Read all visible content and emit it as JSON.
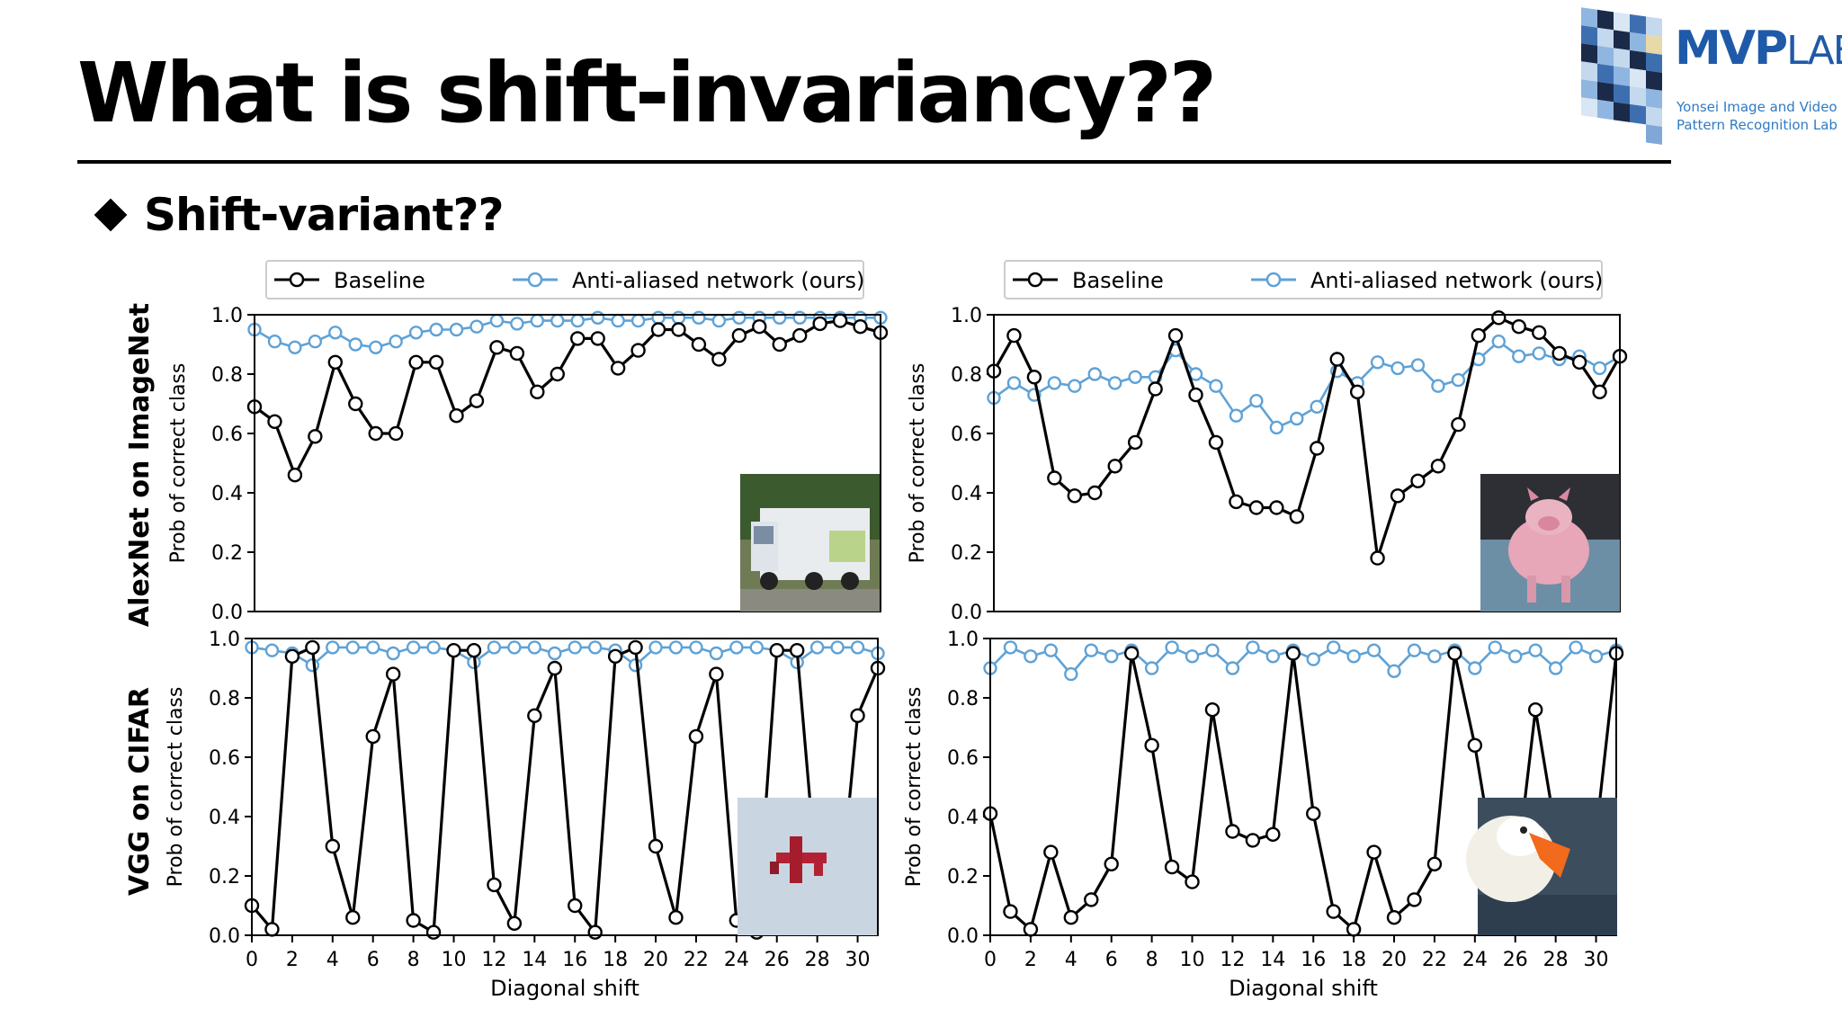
{
  "slide": {
    "title": "What is shift-invariancy??",
    "bullet": "Shift-variant??"
  },
  "logo": {
    "name_main": "MVP",
    "name_lab": "LAB",
    "subtitle_line1": "Yonsei Image and Video",
    "subtitle_line2": "Pattern Recognition Lab"
  },
  "colors": {
    "baseline": "#000000",
    "antialiased": "#5fa2d6"
  },
  "row_labels": [
    "AlexNet on ImageNet",
    "VGG on CIFAR"
  ],
  "chart_data": [
    {
      "type": "line",
      "xlim": [
        0,
        31
      ],
      "ylim": [
        0,
        1
      ],
      "yticks": [
        "0.0",
        "0.2",
        "0.4",
        "0.6",
        "0.8",
        "1.0"
      ],
      "xticks": [],
      "ylabel": "Prob of correct class",
      "xlabel": "",
      "legend": "top-center",
      "inset_image": "garbage-truck-photo",
      "series": [
        {
          "name": "Baseline",
          "x": [
            0,
            1,
            2,
            3,
            4,
            5,
            6,
            7,
            8,
            9,
            10,
            11,
            12,
            13,
            14,
            15,
            16,
            17,
            18,
            19,
            20,
            21,
            22,
            23,
            24,
            25,
            26,
            27,
            28,
            29,
            30,
            31
          ],
          "values": [
            0.69,
            0.64,
            0.46,
            0.59,
            0.84,
            0.7,
            0.6,
            0.6,
            0.84,
            0.84,
            0.66,
            0.71,
            0.89,
            0.87,
            0.74,
            0.8,
            0.92,
            0.92,
            0.82,
            0.88,
            0.95,
            0.95,
            0.9,
            0.85,
            0.93,
            0.96,
            0.9,
            0.93,
            0.97,
            0.98,
            0.96,
            0.94
          ]
        },
        {
          "name": "Anti-aliased network (ours)",
          "x": [
            0,
            1,
            2,
            3,
            4,
            5,
            6,
            7,
            8,
            9,
            10,
            11,
            12,
            13,
            14,
            15,
            16,
            17,
            18,
            19,
            20,
            21,
            22,
            23,
            24,
            25,
            26,
            27,
            28,
            29,
            30,
            31
          ],
          "values": [
            0.95,
            0.91,
            0.89,
            0.91,
            0.94,
            0.9,
            0.89,
            0.91,
            0.94,
            0.95,
            0.95,
            0.96,
            0.98,
            0.97,
            0.98,
            0.98,
            0.98,
            0.99,
            0.98,
            0.98,
            0.99,
            0.99,
            0.99,
            0.98,
            0.99,
            0.99,
            0.99,
            0.99,
            0.99,
            0.99,
            0.99,
            0.99
          ]
        }
      ]
    },
    {
      "type": "line",
      "xlim": [
        0,
        31
      ],
      "ylim": [
        0,
        1
      ],
      "yticks": [
        "0.0",
        "0.2",
        "0.4",
        "0.6",
        "0.8",
        "1.0"
      ],
      "xticks": [],
      "ylabel": "Prob of correct class",
      "xlabel": "",
      "legend": "top-center",
      "inset_image": "pig-toy-photo",
      "series": [
        {
          "name": "Baseline",
          "x": [
            0,
            1,
            2,
            3,
            4,
            5,
            6,
            7,
            8,
            9,
            10,
            11,
            12,
            13,
            14,
            15,
            16,
            17,
            18,
            19,
            20,
            21,
            22,
            23,
            24,
            25,
            26,
            27,
            28,
            29,
            30,
            31
          ],
          "values": [
            0.81,
            0.93,
            0.79,
            0.45,
            0.39,
            0.4,
            0.49,
            0.57,
            0.75,
            0.93,
            0.73,
            0.57,
            0.37,
            0.35,
            0.35,
            0.32,
            0.55,
            0.85,
            0.74,
            0.18,
            0.39,
            0.44,
            0.49,
            0.63,
            0.93,
            0.99,
            0.96,
            0.94,
            0.87,
            0.84,
            0.74,
            0.86
          ]
        },
        {
          "name": "Anti-aliased network (ours)",
          "x": [
            0,
            1,
            2,
            3,
            4,
            5,
            6,
            7,
            8,
            9,
            10,
            11,
            12,
            13,
            14,
            15,
            16,
            17,
            18,
            19,
            20,
            21,
            22,
            23,
            24,
            25,
            26,
            27,
            28,
            29,
            30,
            31
          ],
          "values": [
            0.72,
            0.77,
            0.73,
            0.77,
            0.76,
            0.8,
            0.77,
            0.79,
            0.79,
            0.88,
            0.8,
            0.76,
            0.66,
            0.71,
            0.62,
            0.65,
            0.69,
            0.81,
            0.77,
            0.84,
            0.82,
            0.83,
            0.76,
            0.78,
            0.85,
            0.91,
            0.86,
            0.87,
            0.85,
            0.86,
            0.82,
            0.86
          ]
        }
      ]
    },
    {
      "type": "line",
      "xlim": [
        0,
        31
      ],
      "ylim": [
        0,
        1
      ],
      "yticks": [
        "0.0",
        "0.2",
        "0.4",
        "0.6",
        "0.8",
        "1.0"
      ],
      "xticks": [
        "0",
        "2",
        "4",
        "6",
        "8",
        "10",
        "12",
        "14",
        "16",
        "18",
        "20",
        "22",
        "24",
        "26",
        "28",
        "30"
      ],
      "ylabel": "Prob of correct class",
      "xlabel": "Diagonal shift",
      "inset_image": "red-airplane-photo",
      "series": [
        {
          "name": "Baseline",
          "x": [
            0,
            1,
            2,
            3,
            4,
            5,
            6,
            7,
            8,
            9,
            10,
            11,
            12,
            13,
            14,
            15,
            16,
            17,
            18,
            19,
            20,
            21,
            22,
            23,
            24,
            25,
            26,
            27,
            28,
            29,
            30,
            31
          ],
          "values": [
            0.1,
            0.02,
            0.94,
            0.97,
            0.3,
            0.06,
            0.67,
            0.88,
            0.05,
            0.01,
            0.96,
            0.96,
            0.17,
            0.04,
            0.74,
            0.9,
            0.1,
            0.01,
            0.94,
            0.97,
            0.3,
            0.06,
            0.67,
            0.88,
            0.05,
            0.01,
            0.96,
            0.96,
            0.17,
            0.04,
            0.74,
            0.9
          ]
        },
        {
          "name": "Anti-aliased network (ours)",
          "x": [
            0,
            1,
            2,
            3,
            4,
            5,
            6,
            7,
            8,
            9,
            10,
            11,
            12,
            13,
            14,
            15,
            16,
            17,
            18,
            19,
            20,
            21,
            22,
            23,
            24,
            25,
            26,
            27,
            28,
            29,
            30,
            31
          ],
          "values": [
            0.97,
            0.96,
            0.95,
            0.91,
            0.97,
            0.97,
            0.97,
            0.95,
            0.97,
            0.97,
            0.96,
            0.92,
            0.97,
            0.97,
            0.97,
            0.95,
            0.97,
            0.97,
            0.96,
            0.91,
            0.97,
            0.97,
            0.97,
            0.95,
            0.97,
            0.97,
            0.96,
            0.92,
            0.97,
            0.97,
            0.97,
            0.95
          ]
        }
      ]
    },
    {
      "type": "line",
      "xlim": [
        0,
        31
      ],
      "ylim": [
        0,
        1
      ],
      "yticks": [
        "0.0",
        "0.2",
        "0.4",
        "0.6",
        "0.8",
        "1.0"
      ],
      "xticks": [
        "0",
        "2",
        "4",
        "6",
        "8",
        "10",
        "12",
        "14",
        "16",
        "18",
        "20",
        "22",
        "24",
        "26",
        "28",
        "30"
      ],
      "ylabel": "Prob of correct class",
      "xlabel": "Diagonal shift",
      "inset_image": "white-duck-photo",
      "series": [
        {
          "name": "Baseline",
          "x": [
            0,
            1,
            2,
            3,
            4,
            5,
            6,
            7,
            8,
            9,
            10,
            11,
            12,
            13,
            14,
            15,
            16,
            17,
            18,
            19,
            20,
            21,
            22,
            23,
            24,
            25,
            26,
            27,
            28,
            29,
            30,
            31
          ],
          "values": [
            0.41,
            0.08,
            0.02,
            0.28,
            0.06,
            0.12,
            0.24,
            0.95,
            0.64,
            0.23,
            0.18,
            0.76,
            0.35,
            0.32,
            0.34,
            0.95,
            0.41,
            0.08,
            0.02,
            0.28,
            0.06,
            0.12,
            0.24,
            0.95,
            0.64,
            0.23,
            0.18,
            0.76,
            0.35,
            0.32,
            0.34,
            0.95
          ]
        },
        {
          "name": "Anti-aliased network (ours)",
          "x": [
            0,
            1,
            2,
            3,
            4,
            5,
            6,
            7,
            8,
            9,
            10,
            11,
            12,
            13,
            14,
            15,
            16,
            17,
            18,
            19,
            20,
            21,
            22,
            23,
            24,
            25,
            26,
            27,
            28,
            29,
            30,
            31
          ],
          "values": [
            0.9,
            0.97,
            0.94,
            0.96,
            0.88,
            0.96,
            0.94,
            0.96,
            0.9,
            0.97,
            0.94,
            0.96,
            0.9,
            0.97,
            0.94,
            0.96,
            0.93,
            0.97,
            0.94,
            0.96,
            0.89,
            0.96,
            0.94,
            0.96,
            0.9,
            0.97,
            0.94,
            0.96,
            0.9,
            0.97,
            0.94,
            0.96
          ]
        }
      ]
    }
  ]
}
